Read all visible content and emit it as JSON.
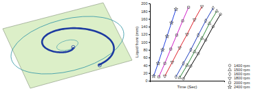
{
  "chart_data": {
    "type": "scatter",
    "x_label": "Time (Sec)",
    "y_label": "Liquid front (mm)",
    "xlim": [
      0,
      100
    ],
    "ylim": [
      0,
      200
    ],
    "yticks": [
      0,
      20,
      40,
      60,
      80,
      100,
      120,
      140,
      160,
      180,
      200
    ],
    "tick_labels": "y",
    "legend": "lower right",
    "series": [
      {
        "name": "1400 rpm",
        "marker": "circle",
        "color": "#000000",
        "x": [
          45,
          55,
          65,
          75,
          85,
          95
        ],
        "values": [
          5,
          38,
          70,
          105,
          140,
          172
        ]
      },
      {
        "name": "1500 rpm",
        "marker": "triangle",
        "color": "#2e8b3a",
        "x": [
          40,
          50,
          60,
          70,
          80,
          90
        ],
        "values": [
          8,
          40,
          75,
          110,
          148,
          180
        ]
      },
      {
        "name": "1600 rpm",
        "marker": "diamond",
        "color": "#1f3fbf",
        "x": [
          35,
          45,
          55,
          65,
          75,
          85
        ],
        "values": [
          10,
          45,
          80,
          118,
          155,
          188
        ]
      },
      {
        "name": "1800 rpm",
        "marker": "triangle-down",
        "color": "#e0202a",
        "x": [
          20,
          30,
          40,
          50,
          60,
          70
        ],
        "values": [
          12,
          48,
          85,
          120,
          158,
          192
        ]
      },
      {
        "name": "2000 rpm",
        "marker": "square",
        "color": "#d020c8",
        "x": [
          12,
          20,
          28,
          36,
          44,
          52
        ],
        "values": [
          10,
          45,
          82,
          118,
          155,
          190
        ]
      },
      {
        "name": "2400 rpm",
        "marker": "star",
        "color": "#2040e0",
        "x": [
          5,
          11,
          17,
          23,
          29,
          35
        ],
        "values": [
          12,
          45,
          80,
          115,
          150,
          185
        ]
      }
    ]
  }
}
